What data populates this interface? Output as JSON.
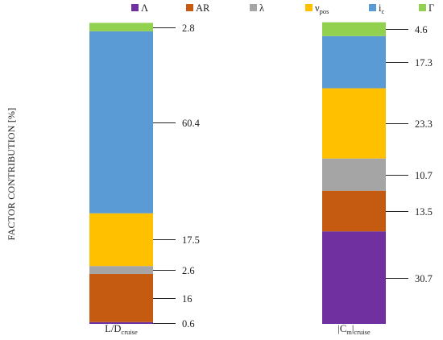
{
  "chart_data": {
    "type": "bar",
    "stacked": true,
    "normalized": true,
    "ylabel": "FACTOR CONTRIBUTION [%]",
    "legend_position": "top",
    "categories": [
      {
        "main": "L/D",
        "sub": "cruise"
      },
      {
        "main": "|C",
        "sub2": "m",
        "mid": "|",
        "sub": "cruise"
      }
    ],
    "series": [
      {
        "name": "Λ",
        "sub": "",
        "color": "#7030A0",
        "values": [
          0.6,
          30.7
        ]
      },
      {
        "name": "AR",
        "sub": "",
        "color": "#C55A11",
        "values": [
          16,
          13.5
        ]
      },
      {
        "name": "λ",
        "sub": "",
        "color": "#A5A5A5",
        "values": [
          2.6,
          10.7
        ]
      },
      {
        "name": "ν",
        "sub": "pos",
        "color": "#FFC000",
        "values": [
          17.5,
          23.3
        ]
      },
      {
        "name": "i",
        "sub": "c",
        "color": "#5B9BD5",
        "values": [
          60.4,
          17.3
        ]
      },
      {
        "name": "Γ",
        "sub": "",
        "color": "#92D050",
        "values": [
          2.8,
          4.6
        ]
      }
    ],
    "data_labels": [
      [
        "0.6",
        "16",
        "2.6",
        "17.5",
        "60.4",
        "2.8"
      ],
      [
        "30.7",
        "13.5",
        "10.7",
        "23.3",
        "17.3",
        "4.6"
      ]
    ],
    "ylim": [
      0,
      100
    ],
    "grid": false
  }
}
